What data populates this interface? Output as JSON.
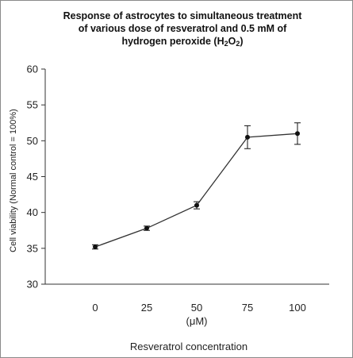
{
  "chart_data": {
    "type": "line",
    "title_lines": [
      "Response of astrocytes to simultaneous treatment",
      "of various dose of resveratrol and 0.5 mM of",
      "hydrogen peroxide (H",
      "2",
      "O",
      "2",
      ")"
    ],
    "categories": [
      "0",
      "25",
      "50",
      "75",
      "100"
    ],
    "series": [
      {
        "values": [
          35.2,
          37.8,
          41.0,
          50.5,
          51.0
        ],
        "errors": [
          0.3,
          0.3,
          0.5,
          1.6,
          1.5
        ]
      }
    ],
    "x_unit": "(μM)",
    "xlabel": "Resveratrol concentration",
    "ylabel": "Cell viability (Normal control = 100%)",
    "yticks": [
      "30",
      "35",
      "40",
      "45",
      "50",
      "55",
      "60"
    ],
    "ylim": [
      30,
      60
    ],
    "grid": false,
    "colors": {
      "line": "#333333",
      "marker": "#111111",
      "axis": "#333333"
    }
  }
}
